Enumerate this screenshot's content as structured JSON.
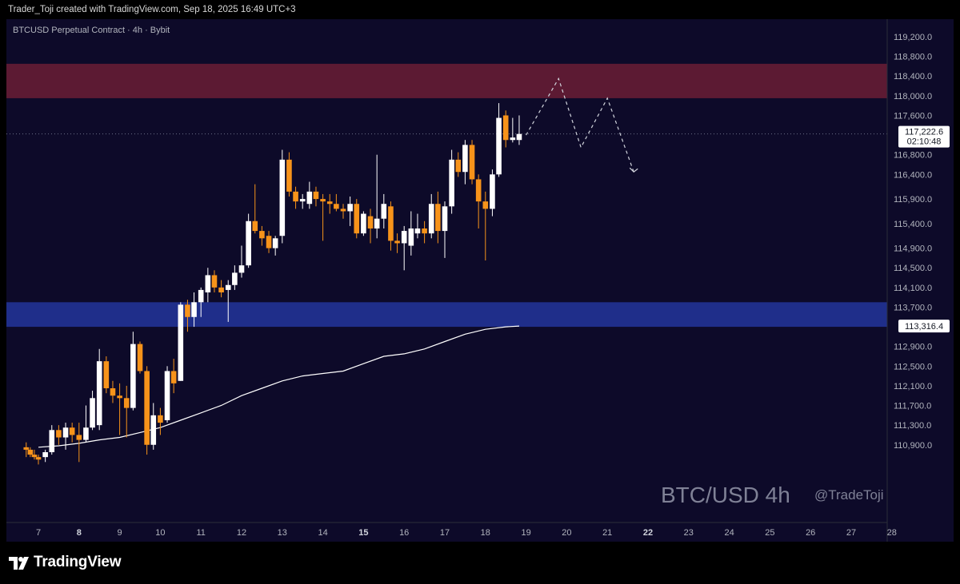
{
  "header": {
    "credit": "Trader_Toji created with TradingView.com, Sep 18, 2025 16:49 UTC+3"
  },
  "chart": {
    "symbol_line": "BTCUSD Perpetual Contract · 4h · Bybit",
    "watermark_main": "BTC/USD 4h",
    "watermark_handle": "@TradeToji",
    "price_label": "117,222.6",
    "countdown_label": "02:10:48",
    "ma_label": "113,316.4"
  },
  "colors": {
    "background": "#0d0a29",
    "up_candle": "#ffffff",
    "down_candle": "#f7931a",
    "supply_zone": "#5c1a33",
    "demand_zone": "#1f2e8a",
    "moving_average": "#ffffff",
    "axis_text": "#b2b5be"
  },
  "footer": {
    "logo_text": "TradingView"
  },
  "chart_data": {
    "type": "candlestick",
    "symbol": "BTCUSD",
    "exchange": "Bybit",
    "timeframe": "4h",
    "y_ticks": [
      119200,
      118800,
      118400,
      118000,
      117600,
      117200,
      116800,
      116400,
      115900,
      115400,
      114900,
      114500,
      114100,
      113700,
      113300,
      112900,
      112500,
      112100,
      111700,
      111300,
      110900
    ],
    "y_tick_labels": [
      "119,200.0",
      "118,800.0",
      "118,400.0",
      "118,000.0",
      "117,600.0",
      "",
      "116,800.0",
      "116,400.0",
      "115,900.0",
      "115,400.0",
      "114,900.0",
      "114,500.0",
      "114,100.0",
      "113,700.0",
      "",
      "112,900.0",
      "112,500.0",
      "112,100.0",
      "111,700.0",
      "111,300.0",
      "110,900.0"
    ],
    "x_ticks": [
      {
        "label": "7",
        "day": 7,
        "bold": false
      },
      {
        "label": "8",
        "day": 8,
        "bold": true
      },
      {
        "label": "9",
        "day": 9,
        "bold": false
      },
      {
        "label": "10",
        "day": 10,
        "bold": false
      },
      {
        "label": "11",
        "day": 11,
        "bold": false
      },
      {
        "label": "12",
        "day": 12,
        "bold": false
      },
      {
        "label": "13",
        "day": 13,
        "bold": false
      },
      {
        "label": "14",
        "day": 14,
        "bold": false
      },
      {
        "label": "15",
        "day": 15,
        "bold": true
      },
      {
        "label": "16",
        "day": 16,
        "bold": false
      },
      {
        "label": "17",
        "day": 17,
        "bold": false
      },
      {
        "label": "18",
        "day": 18,
        "bold": false
      },
      {
        "label": "19",
        "day": 19,
        "bold": false
      },
      {
        "label": "20",
        "day": 20,
        "bold": false
      },
      {
        "label": "21",
        "day": 21,
        "bold": false
      },
      {
        "label": "22",
        "day": 22,
        "bold": true
      },
      {
        "label": "23",
        "day": 23,
        "bold": false
      },
      {
        "label": "24",
        "day": 24,
        "bold": false
      },
      {
        "label": "25",
        "day": 25,
        "bold": false
      },
      {
        "label": "26",
        "day": 26,
        "bold": false
      },
      {
        "label": "27",
        "day": 27,
        "bold": false
      },
      {
        "label": "28",
        "day": 28,
        "bold": false
      }
    ],
    "supply_zone": {
      "top": 118650,
      "bottom": 117950
    },
    "demand_zone": {
      "top": 113800,
      "bottom": 113300
    },
    "last_price": 117222.6,
    "moving_average_last": 113316.4,
    "candles": [
      {
        "d": 6.7,
        "o": 110850,
        "h": 110950,
        "l": 110650,
        "c": 110800
      },
      {
        "d": 6.8,
        "o": 110800,
        "h": 110850,
        "l": 110650,
        "c": 110700
      },
      {
        "d": 6.9,
        "o": 110700,
        "h": 110800,
        "l": 110600,
        "c": 110650
      },
      {
        "d": 7.0,
        "o": 110650,
        "h": 110700,
        "l": 110500,
        "c": 110600
      },
      {
        "d": 7.17,
        "o": 110650,
        "h": 110800,
        "l": 110550,
        "c": 110750
      },
      {
        "d": 7.33,
        "o": 110750,
        "h": 111300,
        "l": 110700,
        "c": 111200
      },
      {
        "d": 7.5,
        "o": 111200,
        "h": 111300,
        "l": 110900,
        "c": 111050
      },
      {
        "d": 7.67,
        "o": 111050,
        "h": 111350,
        "l": 110800,
        "c": 111250
      },
      {
        "d": 7.83,
        "o": 111250,
        "h": 111350,
        "l": 110950,
        "c": 111100
      },
      {
        "d": 8.0,
        "o": 111100,
        "h": 111350,
        "l": 110550,
        "c": 111000
      },
      {
        "d": 8.17,
        "o": 111000,
        "h": 111700,
        "l": 110950,
        "c": 111250
      },
      {
        "d": 8.33,
        "o": 111250,
        "h": 112000,
        "l": 111200,
        "c": 111850
      },
      {
        "d": 8.5,
        "o": 111300,
        "h": 112850,
        "l": 111200,
        "c": 112600
      },
      {
        "d": 8.67,
        "o": 112600,
        "h": 112700,
        "l": 111950,
        "c": 112050
      },
      {
        "d": 8.83,
        "o": 112050,
        "h": 112200,
        "l": 111750,
        "c": 111900
      },
      {
        "d": 9.0,
        "o": 111900,
        "h": 112150,
        "l": 111100,
        "c": 111850
      },
      {
        "d": 9.17,
        "o": 111850,
        "h": 112100,
        "l": 111050,
        "c": 111650
      },
      {
        "d": 9.33,
        "o": 111650,
        "h": 113200,
        "l": 111600,
        "c": 112950
      },
      {
        "d": 9.5,
        "o": 112950,
        "h": 113000,
        "l": 112350,
        "c": 112400
      },
      {
        "d": 9.67,
        "o": 112400,
        "h": 112500,
        "l": 110700,
        "c": 110900
      },
      {
        "d": 9.83,
        "o": 110900,
        "h": 111750,
        "l": 110800,
        "c": 111500
      },
      {
        "d": 10.0,
        "o": 111500,
        "h": 111650,
        "l": 111100,
        "c": 111350
      },
      {
        "d": 10.17,
        "o": 111400,
        "h": 112500,
        "l": 111350,
        "c": 112400
      },
      {
        "d": 10.33,
        "o": 112400,
        "h": 112650,
        "l": 111950,
        "c": 112150
      },
      {
        "d": 10.5,
        "o": 112200,
        "h": 113800,
        "l": 112200,
        "c": 113750
      },
      {
        "d": 10.67,
        "o": 113750,
        "h": 113850,
        "l": 113200,
        "c": 113500
      },
      {
        "d": 10.83,
        "o": 113500,
        "h": 114000,
        "l": 113300,
        "c": 113800
      },
      {
        "d": 11.0,
        "o": 113800,
        "h": 114100,
        "l": 113500,
        "c": 114050
      },
      {
        "d": 11.17,
        "o": 114000,
        "h": 114500,
        "l": 113800,
        "c": 114350
      },
      {
        "d": 11.33,
        "o": 114350,
        "h": 114450,
        "l": 114000,
        "c": 114100
      },
      {
        "d": 11.5,
        "o": 114100,
        "h": 114250,
        "l": 113900,
        "c": 114000
      },
      {
        "d": 11.67,
        "o": 114050,
        "h": 114250,
        "l": 113400,
        "c": 114150
      },
      {
        "d": 11.83,
        "o": 114150,
        "h": 114550,
        "l": 114050,
        "c": 114400
      },
      {
        "d": 12.0,
        "o": 114400,
        "h": 114950,
        "l": 114300,
        "c": 114550
      },
      {
        "d": 12.17,
        "o": 114550,
        "h": 115600,
        "l": 114500,
        "c": 115450
      },
      {
        "d": 12.33,
        "o": 115450,
        "h": 116200,
        "l": 115200,
        "c": 115250
      },
      {
        "d": 12.5,
        "o": 115250,
        "h": 115350,
        "l": 114950,
        "c": 115100
      },
      {
        "d": 12.67,
        "o": 115150,
        "h": 115250,
        "l": 114800,
        "c": 114900
      },
      {
        "d": 12.83,
        "o": 114900,
        "h": 115150,
        "l": 114750,
        "c": 115100
      },
      {
        "d": 13.0,
        "o": 115150,
        "h": 116900,
        "l": 115000,
        "c": 116700
      },
      {
        "d": 13.17,
        "o": 116700,
        "h": 116850,
        "l": 115950,
        "c": 116050
      },
      {
        "d": 13.33,
        "o": 116050,
        "h": 116150,
        "l": 115700,
        "c": 115850
      },
      {
        "d": 13.5,
        "o": 115850,
        "h": 116000,
        "l": 115700,
        "c": 115900
      },
      {
        "d": 13.67,
        "o": 115800,
        "h": 116250,
        "l": 115700,
        "c": 116050
      },
      {
        "d": 13.83,
        "o": 116050,
        "h": 116150,
        "l": 115750,
        "c": 115900
      },
      {
        "d": 14.0,
        "o": 115900,
        "h": 116000,
        "l": 115050,
        "c": 115850
      },
      {
        "d": 14.17,
        "o": 115850,
        "h": 116000,
        "l": 115600,
        "c": 115800
      },
      {
        "d": 14.33,
        "o": 115800,
        "h": 116000,
        "l": 115650,
        "c": 115700
      },
      {
        "d": 14.5,
        "o": 115700,
        "h": 115800,
        "l": 115500,
        "c": 115650
      },
      {
        "d": 14.67,
        "o": 115650,
        "h": 115950,
        "l": 115350,
        "c": 115800
      },
      {
        "d": 14.83,
        "o": 115800,
        "h": 115900,
        "l": 115100,
        "c": 115200
      },
      {
        "d": 15.0,
        "o": 115200,
        "h": 115650,
        "l": 115150,
        "c": 115600
      },
      {
        "d": 15.17,
        "o": 115550,
        "h": 115700,
        "l": 115000,
        "c": 115300
      },
      {
        "d": 15.33,
        "o": 115300,
        "h": 116800,
        "l": 115100,
        "c": 115500
      },
      {
        "d": 15.5,
        "o": 115500,
        "h": 116000,
        "l": 115300,
        "c": 115800
      },
      {
        "d": 15.67,
        "o": 115750,
        "h": 115850,
        "l": 114850,
        "c": 115050
      },
      {
        "d": 15.83,
        "o": 115050,
        "h": 115200,
        "l": 114800,
        "c": 115000
      },
      {
        "d": 16.0,
        "o": 115000,
        "h": 115350,
        "l": 114450,
        "c": 115250
      },
      {
        "d": 16.17,
        "o": 114950,
        "h": 115650,
        "l": 114750,
        "c": 115300
      },
      {
        "d": 16.33,
        "o": 115200,
        "h": 115600,
        "l": 115100,
        "c": 115300
      },
      {
        "d": 16.5,
        "o": 115300,
        "h": 115450,
        "l": 115000,
        "c": 115200
      },
      {
        "d": 16.67,
        "o": 115200,
        "h": 116000,
        "l": 115100,
        "c": 115800
      },
      {
        "d": 16.83,
        "o": 115800,
        "h": 116050,
        "l": 115000,
        "c": 115250
      },
      {
        "d": 17.0,
        "o": 115250,
        "h": 115850,
        "l": 114700,
        "c": 115750
      },
      {
        "d": 17.17,
        "o": 115750,
        "h": 116900,
        "l": 115600,
        "c": 116700
      },
      {
        "d": 17.33,
        "o": 116700,
        "h": 116850,
        "l": 116350,
        "c": 116450
      },
      {
        "d": 17.5,
        "o": 116450,
        "h": 117100,
        "l": 116200,
        "c": 117000
      },
      {
        "d": 17.67,
        "o": 117000,
        "h": 117100,
        "l": 116200,
        "c": 116300
      },
      {
        "d": 17.83,
        "o": 116300,
        "h": 116400,
        "l": 115300,
        "c": 115850
      },
      {
        "d": 18.0,
        "o": 115850,
        "h": 116050,
        "l": 114650,
        "c": 115700
      },
      {
        "d": 18.17,
        "o": 115700,
        "h": 116500,
        "l": 115550,
        "c": 116400
      },
      {
        "d": 18.33,
        "o": 116400,
        "h": 117850,
        "l": 116350,
        "c": 117550
      },
      {
        "d": 18.5,
        "o": 117600,
        "h": 117700,
        "l": 116950,
        "c": 117100
      },
      {
        "d": 18.67,
        "o": 117100,
        "h": 117550,
        "l": 117050,
        "c": 117150
      },
      {
        "d": 18.83,
        "o": 117100,
        "h": 117600,
        "l": 117000,
        "c": 117222.6
      }
    ],
    "moving_average": [
      {
        "d": 7.0,
        "v": 110850
      },
      {
        "d": 7.5,
        "v": 110880
      },
      {
        "d": 8.0,
        "v": 110930
      },
      {
        "d": 8.5,
        "v": 111000
      },
      {
        "d": 9.0,
        "v": 111050
      },
      {
        "d": 9.5,
        "v": 111150
      },
      {
        "d": 10.0,
        "v": 111250
      },
      {
        "d": 10.5,
        "v": 111400
      },
      {
        "d": 11.0,
        "v": 111550
      },
      {
        "d": 11.5,
        "v": 111700
      },
      {
        "d": 12.0,
        "v": 111900
      },
      {
        "d": 12.5,
        "v": 112050
      },
      {
        "d": 13.0,
        "v": 112200
      },
      {
        "d": 13.5,
        "v": 112300
      },
      {
        "d": 14.0,
        "v": 112350
      },
      {
        "d": 14.5,
        "v": 112400
      },
      {
        "d": 15.0,
        "v": 112550
      },
      {
        "d": 15.5,
        "v": 112700
      },
      {
        "d": 16.0,
        "v": 112750
      },
      {
        "d": 16.5,
        "v": 112850
      },
      {
        "d": 17.0,
        "v": 113000
      },
      {
        "d": 17.5,
        "v": 113150
      },
      {
        "d": 18.0,
        "v": 113250
      },
      {
        "d": 18.5,
        "v": 113300
      },
      {
        "d": 18.83,
        "v": 113316.4
      }
    ],
    "projection_path": [
      {
        "d": 19.0,
        "v": 117200
      },
      {
        "d": 19.8,
        "v": 118350
      },
      {
        "d": 20.35,
        "v": 116950
      },
      {
        "d": 21.0,
        "v": 117950
      },
      {
        "d": 21.65,
        "v": 116450
      }
    ]
  }
}
